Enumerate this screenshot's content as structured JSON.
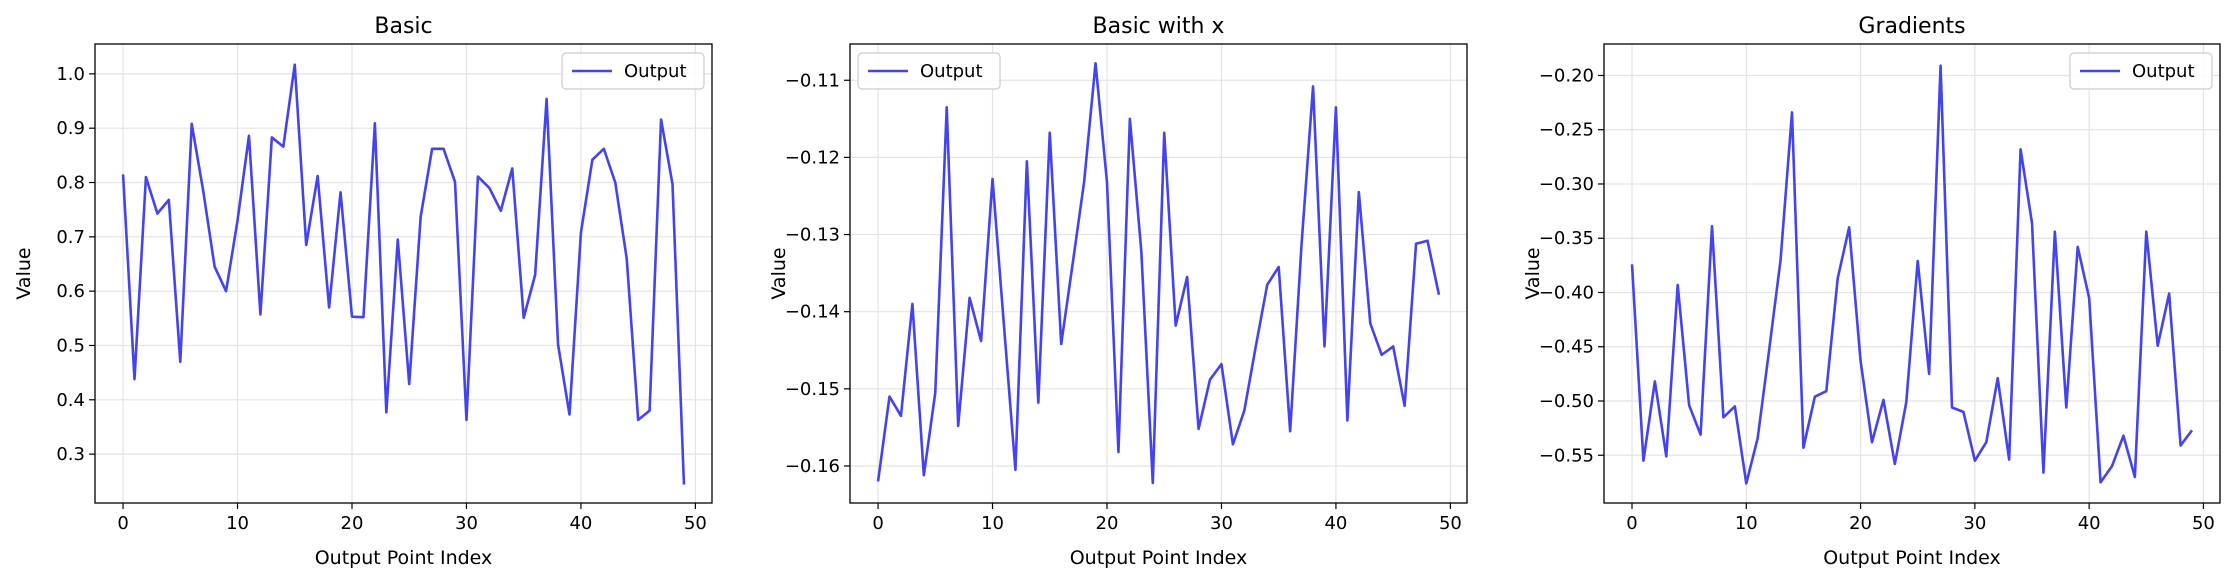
{
  "chart_data": [
    {
      "type": "line",
      "title": "Basic",
      "xlabel": "Output Point Index",
      "ylabel": "Value",
      "xlim": [
        -2.45,
        51.45
      ],
      "ylim": [
        0.21,
        1.055
      ],
      "xticks": [
        0,
        10,
        20,
        30,
        40,
        50
      ],
      "yticks": [
        0.3,
        0.4,
        0.5,
        0.6,
        0.7,
        0.8,
        0.9,
        1.0
      ],
      "ytick_labels": [
        "0.3",
        "0.4",
        "0.5",
        "0.6",
        "0.7",
        "0.8",
        "0.9",
        "1.0"
      ],
      "grid": true,
      "legend_position": "top-right",
      "series": [
        {
          "name": "Output",
          "color": "#4343ef",
          "x": [
            0,
            1,
            2,
            3,
            4,
            5,
            6,
            7,
            8,
            9,
            10,
            11,
            12,
            13,
            14,
            15,
            16,
            17,
            18,
            19,
            20,
            21,
            22,
            23,
            24,
            25,
            26,
            27,
            28,
            29,
            30,
            31,
            32,
            33,
            34,
            35,
            36,
            37,
            38,
            39,
            40,
            41,
            42,
            43,
            44,
            45,
            46,
            47,
            48,
            49
          ],
          "y": [
            0.815,
            0.438,
            0.81,
            0.743,
            0.768,
            0.47,
            0.908,
            0.785,
            0.645,
            0.6,
            0.73,
            0.886,
            0.557,
            0.883,
            0.866,
            1.017,
            0.685,
            0.812,
            0.57,
            0.782,
            0.553,
            0.552,
            0.909,
            0.377,
            0.695,
            0.429,
            0.737,
            0.862,
            0.862,
            0.801,
            0.363,
            0.811,
            0.79,
            0.748,
            0.826,
            0.551,
            0.63,
            0.954,
            0.502,
            0.373,
            0.708,
            0.842,
            0.862,
            0.8,
            0.66,
            0.363,
            0.38,
            0.916,
            0.797,
            0.244
          ]
        }
      ]
    },
    {
      "type": "line",
      "title": "Basic with x",
      "xlabel": "Output Point Index",
      "ylabel": "Value",
      "xlim": [
        -2.45,
        51.45
      ],
      "ylim": [
        -0.1648,
        -0.1053
      ],
      "xticks": [
        0,
        10,
        20,
        30,
        40,
        50
      ],
      "yticks": [
        -0.16,
        -0.15,
        -0.14,
        -0.13,
        -0.12,
        -0.11
      ],
      "ytick_labels": [
        "−0.16",
        "−0.15",
        "−0.14",
        "−0.13",
        "−0.12",
        "−0.11"
      ],
      "grid": true,
      "legend_position": "top-left",
      "series": [
        {
          "name": "Output",
          "color": "#4343ef",
          "x": [
            0,
            1,
            2,
            3,
            4,
            5,
            6,
            7,
            8,
            9,
            10,
            11,
            12,
            13,
            14,
            15,
            16,
            17,
            18,
            19,
            20,
            21,
            22,
            23,
            24,
            25,
            26,
            27,
            28,
            29,
            30,
            31,
            32,
            33,
            34,
            35,
            36,
            37,
            38,
            39,
            40,
            41,
            42,
            43,
            44,
            45,
            46,
            47,
            48,
            49
          ],
          "y": [
            -0.162,
            -0.151,
            -0.1535,
            -0.139,
            -0.1612,
            -0.1505,
            -0.1135,
            -0.1548,
            -0.1382,
            -0.1438,
            -0.1228,
            -0.1418,
            -0.1605,
            -0.1205,
            -0.1518,
            -0.1168,
            -0.1442,
            -0.1338,
            -0.1232,
            -0.1078,
            -0.1232,
            -0.1582,
            -0.115,
            -0.1322,
            -0.1622,
            -0.1168,
            -0.1418,
            -0.1355,
            -0.1552,
            -0.1488,
            -0.1468,
            -0.1572,
            -0.1528,
            -0.1445,
            -0.1365,
            -0.1342,
            -0.1555,
            -0.1312,
            -0.1108,
            -0.1445,
            -0.1135,
            -0.1541,
            -0.1245,
            -0.1415,
            -0.1456,
            -0.1445,
            -0.1522,
            -0.1312,
            -0.1308,
            -0.1378
          ]
        }
      ]
    },
    {
      "type": "line",
      "title": "Gradients",
      "xlabel": "Output Point Index",
      "ylabel": "Value",
      "xlim": [
        -2.45,
        51.45
      ],
      "ylim": [
        -0.594,
        -0.171
      ],
      "xticks": [
        0,
        10,
        20,
        30,
        40,
        50
      ],
      "yticks": [
        -0.55,
        -0.5,
        -0.45,
        -0.4,
        -0.35,
        -0.3,
        -0.25,
        -0.2
      ],
      "ytick_labels": [
        "−0.55",
        "−0.50",
        "−0.45",
        "−0.40",
        "−0.35",
        "−0.30",
        "−0.25",
        "−0.20"
      ],
      "grid": true,
      "legend_position": "top-right",
      "series": [
        {
          "name": "Output",
          "color": "#4343ef",
          "x": [
            0,
            1,
            2,
            3,
            4,
            5,
            6,
            7,
            8,
            9,
            10,
            11,
            12,
            13,
            14,
            15,
            16,
            17,
            18,
            19,
            20,
            21,
            22,
            23,
            24,
            25,
            26,
            27,
            28,
            29,
            30,
            31,
            32,
            33,
            34,
            35,
            36,
            37,
            38,
            39,
            40,
            41,
            42,
            43,
            44,
            45,
            46,
            47,
            48,
            49
          ],
          "y": [
            -0.374,
            -0.555,
            -0.482,
            -0.551,
            -0.393,
            -0.504,
            -0.531,
            -0.339,
            -0.515,
            -0.505,
            -0.576,
            -0.534,
            -0.453,
            -0.37,
            -0.234,
            -0.543,
            -0.496,
            -0.491,
            -0.387,
            -0.34,
            -0.463,
            -0.538,
            -0.499,
            -0.558,
            -0.501,
            -0.371,
            -0.475,
            -0.191,
            -0.506,
            -0.51,
            -0.555,
            -0.538,
            -0.479,
            -0.554,
            -0.268,
            -0.336,
            -0.566,
            -0.344,
            -0.506,
            -0.358,
            -0.405,
            -0.575,
            -0.56,
            -0.532,
            -0.57,
            -0.344,
            -0.449,
            -0.401,
            -0.541,
            -0.527
          ]
        }
      ]
    }
  ]
}
